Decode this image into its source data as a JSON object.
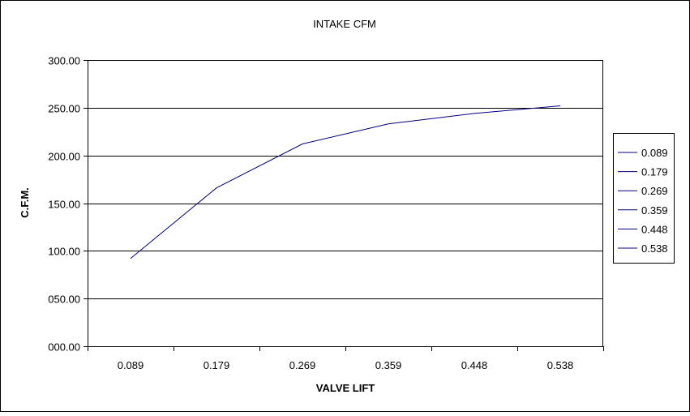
{
  "chart_data": {
    "type": "line",
    "title": "INTAKE CFM",
    "xlabel": "VALVE LIFT",
    "ylabel": "C.F.M.",
    "categories": [
      "0.089",
      "0.179",
      "0.269",
      "0.359",
      "0.448",
      "0.538"
    ],
    "values": [
      92,
      166,
      212,
      233,
      244,
      252
    ],
    "ylim": [
      0,
      300
    ],
    "yticks": [
      "000.00",
      "050.00",
      "100.00",
      "150.00",
      "200.00",
      "250.00",
      "300.00"
    ],
    "ytick_values": [
      0,
      50,
      100,
      150,
      200,
      250,
      300
    ],
    "grid": "horizontal",
    "legend_position": "right",
    "legend_entries": [
      "0.089",
      "0.179",
      "0.269",
      "0.359",
      "0.448",
      "0.538"
    ],
    "line_color": "#000080",
    "frame_color": "#000000",
    "grid_color": "#000000",
    "plot_background": "#ffffff"
  }
}
